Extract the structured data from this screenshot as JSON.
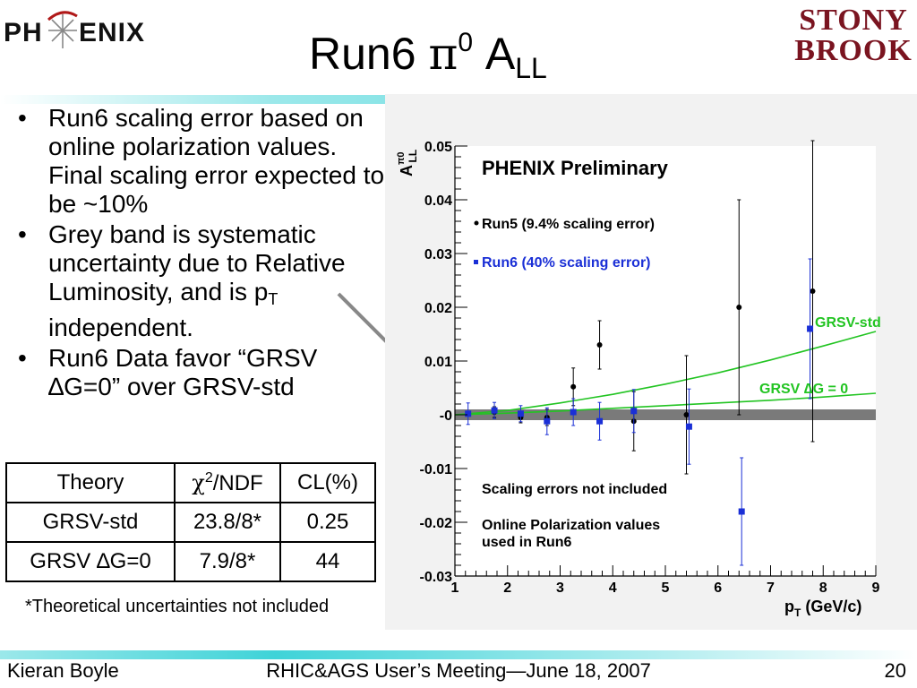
{
  "header": {
    "title_main": "Run6 ",
    "title_pi": "π",
    "title_sup": "0",
    "title_a": " A",
    "title_sub": "LL",
    "left_logo": {
      "text_left": "PH",
      "text_right": "ENIX"
    },
    "right_logo": {
      "line1": "STONY",
      "line2": "BROOK"
    }
  },
  "bullets": [
    {
      "text": "Run6 scaling error based on online polarization values. Final scaling error expected to be ~10%"
    },
    {
      "text_before": "Grey band is systematic uncertainty due to Relative Luminosity, and is p",
      "sub": "T",
      "text_after": " independent."
    },
    {
      "text": "Run6 Data favor “GRSV ∆G=0” over GRSV-std"
    }
  ],
  "table": {
    "headers": {
      "theory": "Theory",
      "chi_symbol": "χ",
      "chi_sup": "2",
      "chi_rest": "/NDF",
      "cl": "CL(%)"
    },
    "rows": [
      {
        "theory": "GRSV-std",
        "chi": "23.8/8*",
        "cl": "0.25"
      },
      {
        "theory": "GRSV ∆G=0",
        "chi": "7.9/8*",
        "cl": "44"
      }
    ]
  },
  "footnote": "*Theoretical uncertainties not included",
  "footer": {
    "left": "Kieran Boyle",
    "center": "RHIC&AGS User’s Meeting—June 18, 2007",
    "right": "20"
  },
  "chart_data": {
    "type": "scatter",
    "title": "PHENIX Preliminary",
    "xlabel_main": "p",
    "xlabel_sub": "T",
    "xlabel_rest": " (GeV/c)",
    "ylabel_main": "A",
    "ylabel_sup": "π0",
    "ylabel_sub": "LL",
    "xlim": [
      1,
      9
    ],
    "ylim": [
      -0.03,
      0.05
    ],
    "x_ticks": [
      "1",
      "2",
      "3",
      "4",
      "5",
      "6",
      "7",
      "8",
      "9"
    ],
    "y_ticks": [
      "-0.03",
      "-0.02",
      "-0.01",
      "-0",
      "0.01",
      "0.02",
      "0.03",
      "0.04",
      "0.05"
    ],
    "systematic_band": {
      "low": -0.0005,
      "high": 0.0005,
      "color": "#7a7a7a"
    },
    "series": [
      {
        "name": "Run5 (9.4% scaling error)",
        "color": "#000000",
        "marker": "circle",
        "points": [
          {
            "x": 1.75,
            "y": 0.0005,
            "err": 0.001
          },
          {
            "x": 2.25,
            "y": -0.0005,
            "err": 0.001
          },
          {
            "x": 2.75,
            "y": -0.0005,
            "err": 0.0015
          },
          {
            "x": 3.25,
            "y": 0.0052,
            "err": 0.0035
          },
          {
            "x": 3.75,
            "y": 0.013,
            "err": 0.0045
          },
          {
            "x": 4.4,
            "y": -0.0012,
            "err": 0.0055
          },
          {
            "x": 5.4,
            "y": 0.0,
            "err": 0.011
          },
          {
            "x": 6.4,
            "y": 0.02,
            "err": 0.02
          },
          {
            "x": 7.8,
            "y": 0.023,
            "err": 0.028
          }
        ]
      },
      {
        "name": "Run6 (40% scaling error)",
        "color": "#1a2fd6",
        "marker": "square",
        "points": [
          {
            "x": 1.25,
            "y": 0.0002,
            "err": 0.002
          },
          {
            "x": 1.75,
            "y": 0.0008,
            "err": 0.0015
          },
          {
            "x": 2.25,
            "y": 0.0002,
            "err": 0.0015
          },
          {
            "x": 2.75,
            "y": -0.0012,
            "err": 0.0025
          },
          {
            "x": 3.25,
            "y": 0.0005,
            "err": 0.0025
          },
          {
            "x": 3.75,
            "y": -0.0012,
            "err": 0.0035
          },
          {
            "x": 4.4,
            "y": 0.0007,
            "err": 0.004
          },
          {
            "x": 5.45,
            "y": -0.0022,
            "err": 0.007
          },
          {
            "x": 6.45,
            "y": -0.018,
            "err": 0.01
          },
          {
            "x": 7.75,
            "y": 0.016,
            "err": 0.013
          }
        ]
      }
    ],
    "curves": [
      {
        "name": "GRSV-std",
        "color": "#22c422",
        "points": [
          [
            1,
            0.0
          ],
          [
            2,
            0.0008
          ],
          [
            3,
            0.0022
          ],
          [
            4,
            0.0038
          ],
          [
            5,
            0.0057
          ],
          [
            6,
            0.0078
          ],
          [
            7,
            0.0102
          ],
          [
            8,
            0.0128
          ],
          [
            9,
            0.0155
          ]
        ]
      },
      {
        "name": "GRSV ∆G = 0",
        "color": "#22c422",
        "points": [
          [
            1,
            0.0
          ],
          [
            2,
            0.0003
          ],
          [
            3,
            0.0007
          ],
          [
            4,
            0.0012
          ],
          [
            5,
            0.0017
          ],
          [
            6,
            0.0022
          ],
          [
            7,
            0.0027
          ],
          [
            8,
            0.0033
          ],
          [
            9,
            0.004
          ]
        ]
      }
    ],
    "legend_position": "top-left",
    "annotations": [
      "Scaling errors not included",
      "Online Polarization values used in Run6"
    ]
  }
}
